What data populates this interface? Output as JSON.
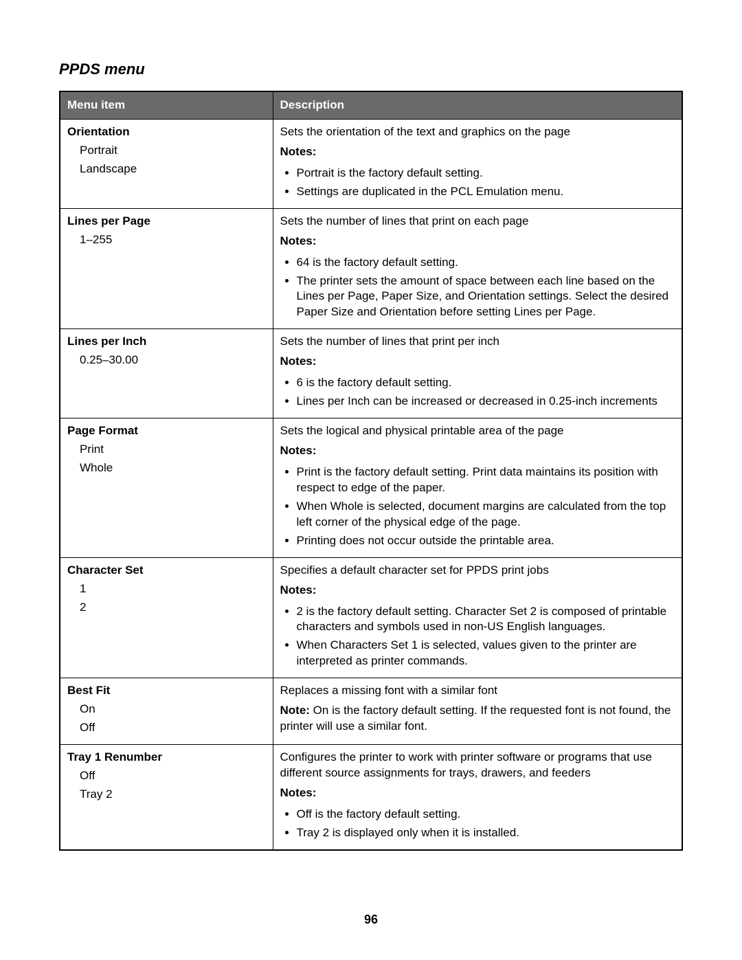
{
  "page_title": "PPDS menu",
  "page_number": "96",
  "columns": {
    "menu_item": "Menu item",
    "description": "Description"
  },
  "rows": [
    {
      "title": "Orientation",
      "options": [
        "Portrait",
        "Landscape"
      ],
      "desc": "Sets the orientation of the text and graphics on the page",
      "notes_label": "Notes:",
      "notes": [
        "Portrait is the factory default setting.",
        "Settings are duplicated in the PCL Emulation menu."
      ]
    },
    {
      "title": "Lines per Page",
      "options": [
        "1–255"
      ],
      "desc": "Sets the number of lines that print on each page",
      "notes_label": "Notes:",
      "notes": [
        "64 is the factory default setting.",
        "The printer sets the amount of space between each line based on the Lines per Page, Paper Size, and Orientation settings. Select the desired Paper Size and Orientation before setting Lines per Page."
      ]
    },
    {
      "title": "Lines per Inch",
      "options": [
        "0.25–30.00"
      ],
      "desc": "Sets the number of lines that print per inch",
      "notes_label": "Notes:",
      "notes": [
        "6 is the factory default setting.",
        "Lines per Inch can be increased or decreased in 0.25-inch increments"
      ]
    },
    {
      "title": "Page Format",
      "options": [
        "Print",
        "Whole"
      ],
      "desc": "Sets the logical and physical printable area of the page",
      "notes_label": "Notes:",
      "notes": [
        "Print is the factory default setting. Print data maintains its position with respect to edge of the paper.",
        "When Whole is selected, document margins are calculated from the top left corner of the physical edge of the page.",
        "Printing does not occur outside the printable area."
      ]
    },
    {
      "title": "Character Set",
      "options": [
        "1",
        "2"
      ],
      "desc": "Specifies a default character set for PPDS print jobs",
      "notes_label": "Notes:",
      "notes": [
        "2 is the factory default setting. Character Set 2 is composed of printable characters and symbols used in non-US English languages.",
        "When Characters Set 1 is selected, values given to the printer are interpreted as printer commands."
      ]
    },
    {
      "title": "Best Fit",
      "options": [
        "On",
        "Off"
      ],
      "desc": "Replaces a missing font with a similar font",
      "single_note_label": "Note:",
      "single_note": " On is the factory default setting. If the requested font is not found, the printer will use a similar font."
    },
    {
      "title": "Tray 1 Renumber",
      "options": [
        "Off",
        "Tray 2"
      ],
      "desc": "Configures the printer to work with printer software or programs that use different source assignments for trays, drawers, and feeders",
      "notes_label": "Notes:",
      "notes": [
        "Off is the factory default setting.",
        "Tray 2 is displayed only when it is installed."
      ]
    }
  ]
}
